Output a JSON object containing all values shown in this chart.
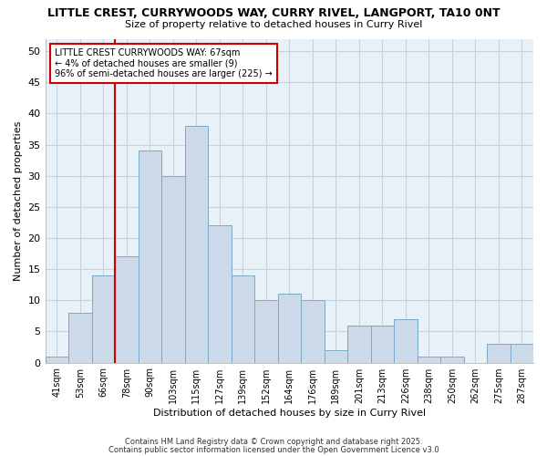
{
  "title1": "LITTLE CREST, CURRYWOODS WAY, CURRY RIVEL, LANGPORT, TA10 0NT",
  "title2": "Size of property relative to detached houses in Curry Rivel",
  "xlabel": "Distribution of detached houses by size in Curry Rivel",
  "ylabel": "Number of detached properties",
  "categories": [
    "41sqm",
    "53sqm",
    "66sqm",
    "78sqm",
    "90sqm",
    "103sqm",
    "115sqm",
    "127sqm",
    "139sqm",
    "152sqm",
    "164sqm",
    "176sqm",
    "189sqm",
    "201sqm",
    "213sqm",
    "226sqm",
    "238sqm",
    "250sqm",
    "262sqm",
    "275sqm",
    "287sqm"
  ],
  "values": [
    1,
    8,
    14,
    17,
    34,
    30,
    38,
    22,
    14,
    10,
    11,
    10,
    2,
    6,
    6,
    7,
    1,
    1,
    0,
    3,
    3
  ],
  "bar_color": "#ccd9e8",
  "bar_edge_color": "#7aaac8",
  "bar_linewidth": 0.7,
  "redline_x": 2.5,
  "redline_label_line1": "LITTLE CREST CURRYWOODS WAY: 67sqm",
  "redline_label_line2": "← 4% of detached houses are smaller (9)",
  "redline_label_line3": "96% of semi-detached houses are larger (225) →",
  "annotation_box_color": "#ffffff",
  "annotation_box_edge": "#cc0000",
  "ylim": [
    0,
    52
  ],
  "yticks": [
    0,
    5,
    10,
    15,
    20,
    25,
    30,
    35,
    40,
    45,
    50
  ],
  "grid_color": "#c8d0e0",
  "bg_color": "#ffffff",
  "plot_bg_color": "#e8f0f8",
  "footer1": "Contains HM Land Registry data © Crown copyright and database right 2025.",
  "footer2": "Contains public sector information licensed under the Open Government Licence v3.0"
}
